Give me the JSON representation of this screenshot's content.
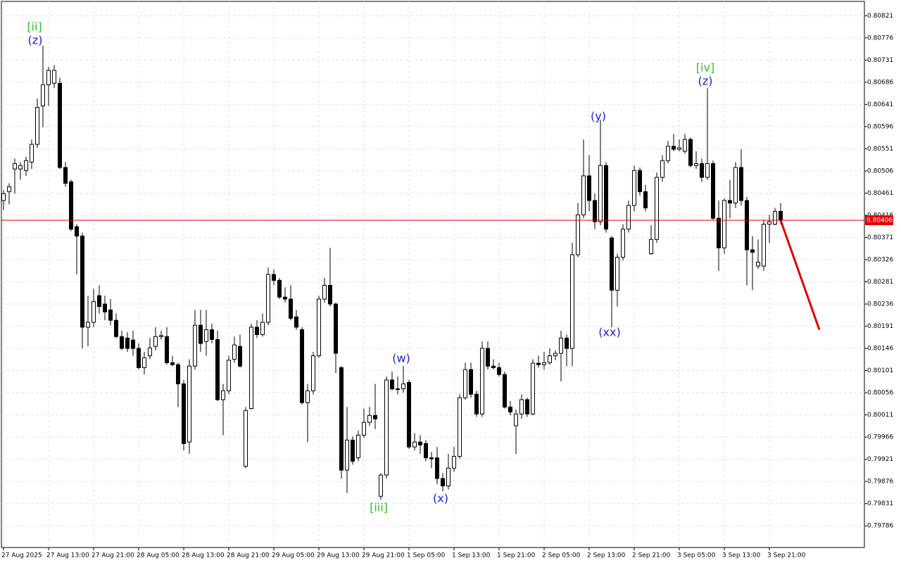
{
  "chart_data": {
    "type": "candlestick",
    "categories": [
      "27 Aug 2025",
      null,
      null,
      null,
      null,
      null,
      null,
      null,
      "27 Aug 13:00",
      null,
      null,
      null,
      null,
      null,
      null,
      null,
      "27 Aug 21:00",
      null,
      null,
      null,
      null,
      null,
      null,
      null,
      "28 Aug 05:00",
      null,
      null,
      null,
      null,
      null,
      null,
      null,
      "28 Aug 13:00",
      null,
      null,
      null,
      null,
      null,
      null,
      null,
      "28 Aug 21:00",
      null,
      null,
      null,
      null,
      null,
      null,
      null,
      "29 Aug 05:00",
      null,
      null,
      null,
      null,
      null,
      null,
      null,
      "29 Aug 13:00",
      null,
      null,
      null,
      null,
      null,
      null,
      null,
      "29 Aug 21:00",
      null,
      null,
      null,
      null,
      null,
      null,
      null,
      "1 Sep 05:00",
      null,
      null,
      null,
      null,
      null,
      null,
      null,
      "1 Sep 13:00",
      null,
      null,
      null,
      null,
      null,
      null,
      null,
      "1 Sep 21:00",
      null,
      null,
      null,
      null,
      null,
      null,
      null,
      "2 Sep 05:00",
      null,
      null,
      null,
      null,
      null,
      null,
      null,
      "2 Sep 13:00",
      null,
      null,
      null,
      null,
      null,
      null,
      null,
      "2 Sep 21:00",
      null,
      null,
      null,
      null,
      null,
      null,
      null,
      "3 Sep 05:00",
      null,
      null,
      null,
      null,
      null,
      null,
      null,
      "3 Sep 13:00",
      null,
      null,
      null,
      null,
      null,
      null,
      null,
      "3 Sep 21:00",
      null,
      null
    ],
    "open": [
      0.80446,
      0.80464,
      0.8051,
      0.8051,
      0.80507,
      0.80524,
      0.8056,
      0.80638,
      0.80681,
      0.80684,
      0.80684,
      0.80513,
      0.80484,
      0.80393,
      0.80374,
      0.80189,
      0.80199,
      0.80253,
      0.80236,
      0.80224,
      0.80203,
      0.8017,
      0.80167,
      0.80163,
      0.80146,
      0.80107,
      0.80131,
      0.8015,
      0.8017,
      0.8017,
      0.80117,
      0.80113,
      0.80074,
      0.79956,
      0.8011,
      0.80193,
      0.8016,
      0.80184,
      0.80164,
      0.80042,
      0.8006,
      0.80124,
      0.8015,
      0.79907,
      0.80024,
      0.80189,
      0.80174,
      0.80199,
      0.80296,
      0.80284,
      0.8025,
      0.80246,
      0.8021,
      0.80184,
      0.80036,
      0.8006,
      0.80131,
      0.80246,
      0.80274,
      0.80236,
      0.80107,
      0.79899,
      0.7996,
      0.79924,
      0.7997,
      0.79996,
      0.8001,
      0.79846,
      0.79889,
      0.80082,
      0.80064,
      0.80064,
      0.80077,
      0.79946,
      0.79956,
      0.79953,
      0.79924,
      0.79924,
      0.79882,
      0.79867,
      0.79903,
      0.79927,
      0.80046,
      0.80103,
      0.80053,
      0.80013,
      0.80146,
      0.8011,
      0.80107,
      0.80093,
      0.80027,
      0.79989,
      0.80013,
      0.80042,
      0.80013,
      0.80116,
      0.80113,
      0.80117,
      0.80131,
      0.80136,
      0.80167,
      0.80146,
      0.80336,
      0.80417,
      0.80496,
      0.80446,
      0.80403,
      0.80517,
      0.8037,
      0.80264,
      0.80331,
      0.80388,
      0.80436,
      0.80507,
      0.80464,
      0.80338,
      0.80367,
      0.80493,
      0.80527,
      0.80556,
      0.8055,
      0.80546,
      0.8057,
      0.80517,
      0.80521,
      0.80493,
      0.80521,
      0.8041,
      0.8035,
      0.80446,
      0.80441,
      0.80513,
      0.80446,
      0.80346,
      0.80313,
      0.80313,
      0.80398,
      0.80398,
      0.80424
    ],
    "high": [
      0.80467,
      0.80481,
      0.80531,
      0.80524,
      0.80535,
      0.8057,
      0.80653,
      0.8076,
      0.80717,
      0.80721,
      0.80695,
      0.80524,
      0.80488,
      0.80398,
      0.80381,
      0.80253,
      0.80267,
      0.80274,
      0.80253,
      0.80246,
      0.80217,
      0.80182,
      0.80179,
      0.80182,
      0.80156,
      0.80139,
      0.80167,
      0.80189,
      0.80182,
      0.80189,
      0.80131,
      0.80117,
      0.80082,
      0.80124,
      0.80224,
      0.80224,
      0.80224,
      0.80196,
      0.80182,
      0.80074,
      0.80131,
      0.8017,
      0.80174,
      0.80027,
      0.80196,
      0.80203,
      0.80217,
      0.8031,
      0.80306,
      0.80289,
      0.8027,
      0.80274,
      0.80224,
      0.80189,
      0.80074,
      0.80139,
      0.80253,
      0.80289,
      0.8035,
      0.80239,
      0.8011,
      0.80027,
      0.79967,
      0.79979,
      0.80024,
      0.80027,
      0.80074,
      0.79893,
      0.80089,
      0.80099,
      0.80089,
      0.8011,
      0.80082,
      0.79974,
      0.7997,
      0.7996,
      0.79936,
      0.79946,
      0.79893,
      0.79932,
      0.79946,
      0.80053,
      0.80117,
      0.80117,
      0.8006,
      0.8016,
      0.8016,
      0.80124,
      0.80117,
      0.80099,
      0.80039,
      0.80022,
      0.80053,
      0.80046,
      0.80124,
      0.80131,
      0.80139,
      0.80146,
      0.80142,
      0.80182,
      0.80174,
      0.8036,
      0.80441,
      0.8057,
      0.80538,
      0.8046,
      0.8061,
      0.80524,
      0.80374,
      0.80338,
      0.80398,
      0.80446,
      0.80517,
      0.80513,
      0.80478,
      0.80396,
      0.80503,
      0.80538,
      0.80567,
      0.80581,
      0.8057,
      0.80581,
      0.80574,
      0.80546,
      0.80531,
      0.80674,
      0.80527,
      0.80446,
      0.8045,
      0.80488,
      0.80524,
      0.8055,
      0.80453,
      0.80374,
      0.80367,
      0.80407,
      0.80417,
      0.80431,
      0.80441
    ],
    "low": [
      0.80427,
      0.80438,
      0.8046,
      0.80488,
      0.80496,
      0.8051,
      0.80553,
      0.80595,
      0.80638,
      0.80674,
      0.8051,
      0.80474,
      0.80384,
      0.80296,
      0.80146,
      0.8015,
      0.80189,
      0.80217,
      0.80203,
      0.80193,
      0.80167,
      0.80143,
      0.80139,
      0.80131,
      0.80103,
      0.80093,
      0.80124,
      0.80142,
      0.80164,
      0.80113,
      0.8011,
      0.80027,
      0.79939,
      0.79932,
      0.80103,
      0.80139,
      0.80131,
      0.80156,
      0.80039,
      0.7997,
      0.80053,
      0.80117,
      0.80107,
      0.79903,
      0.80022,
      0.80167,
      0.8017,
      0.80193,
      0.80274,
      0.80246,
      0.80239,
      0.80203,
      0.80184,
      0.80032,
      0.79956,
      0.80053,
      0.80127,
      0.80239,
      0.80231,
      0.80096,
      0.79882,
      0.79853,
      0.7991,
      0.79917,
      0.79964,
      0.79989,
      0.79982,
      0.79839,
      0.79882,
      0.8006,
      0.80053,
      0.80056,
      0.79942,
      0.79939,
      0.79932,
      0.79917,
      0.79903,
      0.7987,
      0.79856,
      0.7986,
      0.79896,
      0.79922,
      0.80042,
      0.80046,
      0.80007,
      0.80007,
      0.80103,
      0.80103,
      0.80089,
      0.80024,
      0.8001,
      0.79932,
      0.80003,
      0.80007,
      0.8001,
      0.80107,
      0.80103,
      0.80113,
      0.80122,
      0.80079,
      0.8011,
      0.8011,
      0.80331,
      0.8041,
      0.80424,
      0.80388,
      0.80396,
      0.80381,
      0.80189,
      0.80231,
      0.80324,
      0.80381,
      0.80424,
      0.80456,
      0.80424,
      0.80336,
      0.8036,
      0.80484,
      0.80521,
      0.80546,
      0.80546,
      0.80541,
      0.80513,
      0.8051,
      0.80484,
      0.80488,
      0.80407,
      0.80303,
      0.80338,
      0.8041,
      0.80431,
      0.80436,
      0.80274,
      0.80264,
      0.80307,
      0.80303,
      0.8036,
      0.80396,
      0.80398
    ],
    "close": [
      0.8046,
      0.80474,
      0.80521,
      0.80517,
      0.80527,
      0.8056,
      0.80635,
      0.80681,
      0.8071,
      0.8071,
      0.80513,
      0.80481,
      0.80388,
      0.80374,
      0.80189,
      0.80199,
      0.80241,
      0.80231,
      0.8022,
      0.80203,
      0.8017,
      0.80146,
      0.80146,
      0.80146,
      0.80107,
      0.80127,
      0.80147,
      0.8017,
      0.80172,
      0.80117,
      0.80113,
      0.80074,
      0.79953,
      0.8011,
      0.80193,
      0.80156,
      0.80184,
      0.80164,
      0.80042,
      0.8006,
      0.80122,
      0.80153,
      0.8011,
      0.8002,
      0.80189,
      0.80174,
      0.80199,
      0.80296,
      0.80284,
      0.8025,
      0.80246,
      0.80207,
      0.80189,
      0.80036,
      0.8006,
      0.80131,
      0.80246,
      0.80274,
      0.80236,
      0.80136,
      0.79899,
      0.7996,
      0.79917,
      0.7997,
      0.79996,
      0.8001,
      0.80003,
      0.79889,
      0.80082,
      0.80064,
      0.80063,
      0.80074,
      0.79946,
      0.79956,
      0.7995,
      0.79924,
      0.79922,
      0.79882,
      0.79867,
      0.79903,
      0.79927,
      0.80046,
      0.80103,
      0.80053,
      0.80013,
      0.80146,
      0.8011,
      0.80107,
      0.80093,
      0.80027,
      0.80017,
      0.80013,
      0.80042,
      0.80013,
      0.80116,
      0.80113,
      0.80117,
      0.80131,
      0.80136,
      0.80167,
      0.80146,
      0.80336,
      0.80417,
      0.80496,
      0.80446,
      0.80403,
      0.80517,
      0.80388,
      0.80264,
      0.80331,
      0.80388,
      0.80436,
      0.80507,
      0.80464,
      0.80431,
      0.80367,
      0.80493,
      0.80527,
      0.80556,
      0.8055,
      0.80553,
      0.8057,
      0.80517,
      0.80521,
      0.80493,
      0.80521,
      0.8041,
      0.8035,
      0.80446,
      0.80441,
      0.80513,
      0.80446,
      0.80346,
      0.80341,
      0.80321,
      0.80398,
      0.80403,
      0.80424,
      0.80406
    ],
    "up_color": "#ffffff",
    "down_color": "#000000",
    "outline_color": "#000000",
    "ylim": [
      0.79742,
      0.8085
    ],
    "yticks": [
      0.80821,
      0.80776,
      0.80731,
      0.80686,
      0.80641,
      0.80596,
      0.80551,
      0.80506,
      0.80461,
      0.80416,
      0.80371,
      0.80326,
      0.80281,
      0.80236,
      0.80191,
      0.80146,
      0.80101,
      0.80056,
      0.80011,
      0.79966,
      0.79921,
      0.79876,
      0.79831,
      0.79786
    ],
    "grid": true,
    "current_price": 0.80406,
    "current_price_color": "#e00000",
    "forecast": [
      0.80406,
      0.80184
    ],
    "forecast_color": "#e00000",
    "wave_labels": [
      "[ii]",
      "(z)",
      "[iii]",
      "(w)",
      "(x)",
      "(y)",
      "(xx)",
      "[iv]",
      "(z)"
    ]
  }
}
